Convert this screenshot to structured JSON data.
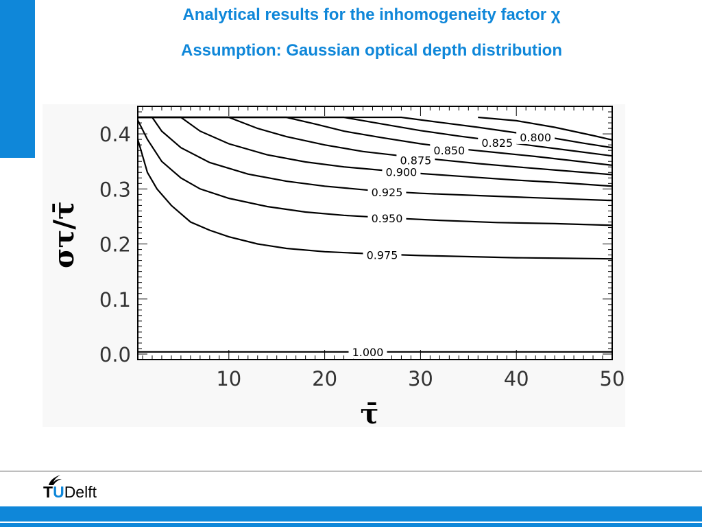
{
  "slide": {
    "title_line1": "Analytical results for the inhomogeneity factor χ",
    "title_line2": "Assumption: Gaussian optical depth distribution",
    "accent_color": "#0f87d9"
  },
  "logo": {
    "t": "T",
    "u": "U",
    "delft": "Delft",
    "icon": "flame-icon"
  },
  "chart_data": {
    "type": "line",
    "title": "",
    "xlabel": "τ̄",
    "ylabel": "στ/τ̄",
    "xlim": [
      0.5,
      50
    ],
    "ylim": [
      -0.01,
      0.45
    ],
    "xticks": [
      10,
      20,
      30,
      40,
      50
    ],
    "yticks": [
      0.0,
      0.1,
      0.2,
      0.3,
      0.4
    ],
    "xtick_labels": [
      "10",
      "20",
      "30",
      "40",
      "50"
    ],
    "ytick_labels": [
      "0.0",
      "0.1",
      "0.2",
      "0.3",
      "0.4"
    ],
    "grid": false,
    "series": [
      {
        "label": "1.000",
        "label_pos": [
          24.5,
          0.004
        ],
        "points": [
          [
            0.5,
            0.004
          ],
          [
            50,
            0.004
          ]
        ]
      },
      {
        "label": "0.975",
        "label_pos": [
          26,
          0.18
        ],
        "points": [
          [
            0.5,
            0.39
          ],
          [
            1.5,
            0.33
          ],
          [
            2.5,
            0.3
          ],
          [
            4,
            0.27
          ],
          [
            6,
            0.24
          ],
          [
            8,
            0.225
          ],
          [
            10,
            0.213
          ],
          [
            13,
            0.2
          ],
          [
            16,
            0.192
          ],
          [
            20,
            0.186
          ],
          [
            25,
            0.182
          ],
          [
            30,
            0.179
          ],
          [
            35,
            0.177
          ],
          [
            40,
            0.175
          ],
          [
            45,
            0.174
          ],
          [
            50,
            0.173
          ]
        ]
      },
      {
        "label": "0.950",
        "label_pos": [
          26.5,
          0.247
        ],
        "points": [
          [
            0.5,
            0.425
          ],
          [
            1.5,
            0.39
          ],
          [
            3,
            0.35
          ],
          [
            5,
            0.32
          ],
          [
            7,
            0.3
          ],
          [
            10,
            0.283
          ],
          [
            14,
            0.268
          ],
          [
            18,
            0.258
          ],
          [
            22,
            0.252
          ],
          [
            27,
            0.247
          ],
          [
            32,
            0.243
          ],
          [
            38,
            0.239
          ],
          [
            44,
            0.237
          ],
          [
            50,
            0.234
          ]
        ]
      },
      {
        "label": "0.925",
        "label_pos": [
          26.5,
          0.294
        ],
        "points": [
          [
            0.5,
            0.43
          ],
          [
            2,
            0.43
          ],
          [
            3,
            0.405
          ],
          [
            5,
            0.375
          ],
          [
            8,
            0.348
          ],
          [
            12,
            0.327
          ],
          [
            16,
            0.314
          ],
          [
            20,
            0.305
          ],
          [
            25,
            0.297
          ],
          [
            30,
            0.292
          ],
          [
            36,
            0.288
          ],
          [
            42,
            0.284
          ],
          [
            50,
            0.279
          ]
        ]
      },
      {
        "label": "0.900",
        "label_pos": [
          28,
          0.331
        ],
        "points": [
          [
            0.5,
            0.43
          ],
          [
            5,
            0.43
          ],
          [
            7,
            0.405
          ],
          [
            10,
            0.382
          ],
          [
            14,
            0.362
          ],
          [
            18,
            0.349
          ],
          [
            22,
            0.34
          ],
          [
            26,
            0.334
          ],
          [
            30,
            0.328
          ],
          [
            35,
            0.322
          ],
          [
            40,
            0.316
          ],
          [
            45,
            0.311
          ],
          [
            50,
            0.305
          ]
        ]
      },
      {
        "label": "0.875",
        "label_pos": [
          29.5,
          0.352
        ],
        "points": [
          [
            0.5,
            0.43
          ],
          [
            10,
            0.43
          ],
          [
            13,
            0.41
          ],
          [
            16,
            0.395
          ],
          [
            20,
            0.38
          ],
          [
            24,
            0.368
          ],
          [
            28,
            0.36
          ],
          [
            32,
            0.353
          ],
          [
            36,
            0.346
          ],
          [
            40,
            0.34
          ],
          [
            45,
            0.333
          ],
          [
            50,
            0.326
          ]
        ]
      },
      {
        "label": "0.850",
        "label_pos": [
          33,
          0.37
        ],
        "points": [
          [
            0.5,
            0.43
          ],
          [
            16,
            0.43
          ],
          [
            19,
            0.418
          ],
          [
            22,
            0.405
          ],
          [
            26,
            0.393
          ],
          [
            30,
            0.382
          ],
          [
            34,
            0.373
          ],
          [
            38,
            0.366
          ],
          [
            42,
            0.359
          ],
          [
            46,
            0.351
          ],
          [
            50,
            0.343
          ]
        ]
      },
      {
        "label": "0.825",
        "label_pos": [
          38,
          0.384
        ],
        "points": [
          [
            0.5,
            0.43
          ],
          [
            22,
            0.43
          ],
          [
            26,
            0.418
          ],
          [
            30,
            0.406
          ],
          [
            34,
            0.396
          ],
          [
            38,
            0.387
          ],
          [
            42,
            0.378
          ],
          [
            46,
            0.369
          ],
          [
            50,
            0.36
          ]
        ]
      },
      {
        "label": "0.800",
        "label_pos": [
          42,
          0.394
        ],
        "points": [
          [
            0.5,
            0.43
          ],
          [
            28,
            0.43
          ],
          [
            32,
            0.421
          ],
          [
            36,
            0.412
          ],
          [
            40,
            0.402
          ],
          [
            44,
            0.392
          ],
          [
            47,
            0.383
          ],
          [
            50,
            0.375
          ]
        ]
      },
      {
        "label": "",
        "label_pos": null,
        "points": [
          [
            36,
            0.43
          ],
          [
            40,
            0.424
          ],
          [
            44,
            0.412
          ],
          [
            48,
            0.397
          ],
          [
            50,
            0.389
          ]
        ]
      }
    ]
  }
}
